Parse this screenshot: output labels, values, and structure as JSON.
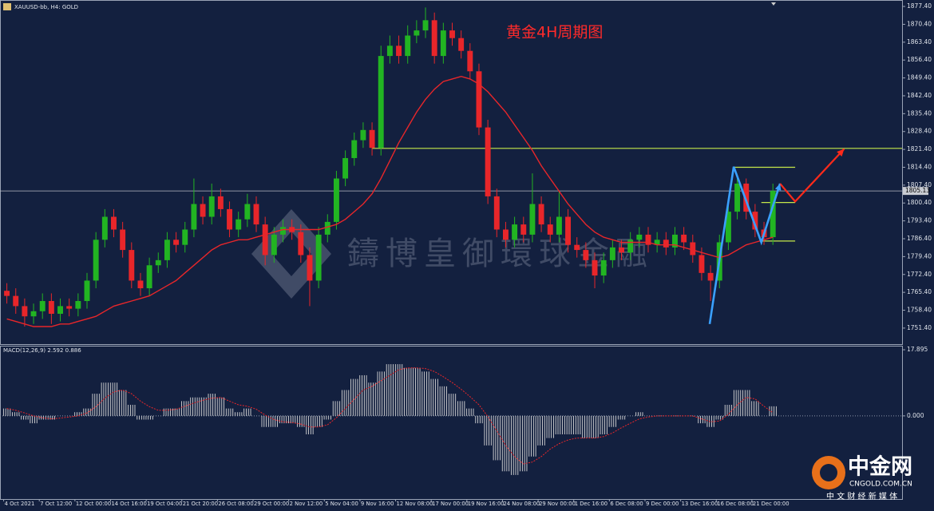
{
  "chart_data": [
    {
      "type": "candlestick",
      "title": "黄金4H周期图",
      "symbol_label": "XAUUSD-bb, H4: GOLD",
      "watermark": "鑄博皇御環球金融",
      "up_color": "#22b422",
      "down_color": "#e8262a",
      "open": [
        1766,
        1764,
        1760,
        1756,
        1758,
        1762,
        1757,
        1760,
        1759,
        1762,
        1770,
        1786,
        1795,
        1790,
        1782,
        1770,
        1767,
        1776,
        1778,
        1786,
        1784,
        1790,
        1800,
        1795,
        1803,
        1798,
        1790,
        1794,
        1800,
        1792,
        1780,
        1788,
        1791,
        1789,
        1780,
        1770,
        1788,
        1793,
        1810,
        1818,
        1825,
        1829,
        1822,
        1858,
        1862,
        1858,
        1866,
        1868,
        1872,
        1858,
        1868,
        1865,
        1860,
        1852,
        1830,
        1803,
        1790,
        1786,
        1792,
        1788,
        1800,
        1792,
        1788,
        1795,
        1784,
        1782,
        1778,
        1772,
        1778,
        1783,
        1781,
        1786,
        1788,
        1784,
        1786,
        1783,
        1788,
        1785,
        1780,
        1773,
        1770,
        1785,
        1797,
        1808,
        1797,
        1790,
        1787
      ],
      "high": [
        1769,
        1767,
        1763,
        1761,
        1765,
        1765,
        1763,
        1763,
        1765,
        1773,
        1789,
        1798,
        1798,
        1793,
        1785,
        1773,
        1779,
        1781,
        1789,
        1789,
        1793,
        1810,
        1803,
        1808,
        1806,
        1801,
        1797,
        1804,
        1803,
        1795,
        1791,
        1794,
        1794,
        1792,
        1783,
        1791,
        1796,
        1813,
        1821,
        1828,
        1832,
        1832,
        1862,
        1866,
        1866,
        1870,
        1872,
        1877,
        1875,
        1871,
        1871,
        1868,
        1863,
        1855,
        1833,
        1806,
        1793,
        1795,
        1795,
        1812,
        1803,
        1795,
        1805,
        1798,
        1787,
        1785,
        1781,
        1781,
        1786,
        1786,
        1789,
        1791,
        1791,
        1789,
        1789,
        1791,
        1791,
        1788,
        1783,
        1776,
        1788,
        1800,
        1811,
        1810,
        1800,
        1793,
        1808
      ],
      "low": [
        1761,
        1757,
        1752,
        1753,
        1755,
        1753,
        1754,
        1756,
        1756,
        1759,
        1767,
        1783,
        1787,
        1779,
        1767,
        1764,
        1764,
        1773,
        1775,
        1781,
        1781,
        1787,
        1792,
        1792,
        1795,
        1787,
        1787,
        1791,
        1789,
        1776,
        1777,
        1785,
        1786,
        1777,
        1760,
        1767,
        1785,
        1790,
        1807,
        1815,
        1822,
        1819,
        1819,
        1855,
        1855,
        1855,
        1863,
        1865,
        1855,
        1855,
        1862,
        1857,
        1849,
        1827,
        1800,
        1787,
        1783,
        1783,
        1785,
        1785,
        1789,
        1785,
        1785,
        1781,
        1779,
        1775,
        1767,
        1769,
        1775,
        1778,
        1778,
        1783,
        1781,
        1781,
        1780,
        1780,
        1782,
        1777,
        1770,
        1762,
        1767,
        1782,
        1794,
        1794,
        1787,
        1784,
        1784
      ],
      "close": [
        1764,
        1760,
        1756,
        1758,
        1762,
        1757,
        1760,
        1759,
        1762,
        1770,
        1786,
        1795,
        1790,
        1782,
        1770,
        1767,
        1776,
        1778,
        1786,
        1784,
        1790,
        1800,
        1795,
        1803,
        1798,
        1790,
        1794,
        1800,
        1792,
        1780,
        1788,
        1791,
        1789,
        1780,
        1770,
        1788,
        1793,
        1810,
        1818,
        1825,
        1829,
        1822,
        1858,
        1862,
        1858,
        1866,
        1868,
        1872,
        1858,
        1868,
        1865,
        1860,
        1852,
        1830,
        1803,
        1790,
        1786,
        1792,
        1788,
        1800,
        1792,
        1788,
        1795,
        1784,
        1782,
        1778,
        1772,
        1778,
        1783,
        1781,
        1786,
        1788,
        1784,
        1786,
        1783,
        1788,
        1785,
        1780,
        1773,
        1770,
        1785,
        1797,
        1808,
        1797,
        1790,
        1787,
        1805.13
      ],
      "ma": {
        "color": "#e8262a",
        "values": [
          1755,
          1754,
          1753,
          1752,
          1752,
          1752,
          1753,
          1753,
          1754,
          1755,
          1756,
          1758,
          1760,
          1761,
          1762,
          1763,
          1764,
          1766,
          1768,
          1770,
          1773,
          1776,
          1779,
          1782,
          1784,
          1785,
          1786,
          1786,
          1787,
          1788,
          1789,
          1790,
          1790,
          1790,
          1790,
          1790,
          1791,
          1792,
          1794,
          1797,
          1800,
          1804,
          1810,
          1817,
          1824,
          1830,
          1836,
          1841,
          1845,
          1848,
          1849,
          1850,
          1849,
          1847,
          1844,
          1840,
          1836,
          1831,
          1826,
          1821,
          1815,
          1810,
          1805,
          1800,
          1796,
          1792,
          1789,
          1787,
          1786,
          1785,
          1785,
          1785,
          1785,
          1784,
          1784,
          1784,
          1783,
          1782,
          1781,
          1780,
          1779,
          1780,
          1782,
          1784,
          1785,
          1786,
          1787
        ]
      },
      "levels": [
        {
          "value": 1821.8,
          "from": 41
        },
        {
          "value": 1814.4,
          "from": 81.6
        },
        {
          "value": 1800.6,
          "from": 84.7
        },
        {
          "value": 1785.5,
          "from": 84.7
        }
      ],
      "level_color": "#c6e84a",
      "level_to": 88.5,
      "current_price": 1805.13,
      "zigzag": {
        "color": "#3aa0ff",
        "x": [
          78.9,
          81.6,
          84.7,
          86.8
        ],
        "y": [
          1753,
          1814.6,
          1785,
          1808
        ]
      },
      "arrow": {
        "color": "#ff2a1a",
        "x": [
          86.8,
          88.5,
          94
        ],
        "y": [
          1808,
          1801,
          1821.6
        ]
      },
      "xlim": [
        0,
        101
      ],
      "ylim": [
        1744.8,
        1879.3
      ],
      "yticks": [
        {
          "value": 1877.4,
          "label": "1877.40"
        },
        {
          "value": 1870.4,
          "label": "1870.40"
        },
        {
          "value": 1863.4,
          "label": "1863.40"
        },
        {
          "value": 1856.4,
          "label": "1856.40"
        },
        {
          "value": 1849.4,
          "label": "1849.40"
        },
        {
          "value": 1842.4,
          "label": "1842.40"
        },
        {
          "value": 1835.4,
          "label": "1835.40"
        },
        {
          "value": 1828.4,
          "label": "1828.40"
        },
        {
          "value": 1821.4,
          "label": "1821.40"
        },
        {
          "value": 1814.4,
          "label": "1814.40"
        },
        {
          "value": 1807.4,
          "label": "1807.40"
        },
        {
          "value": 1800.4,
          "label": "1800.40"
        },
        {
          "value": 1793.4,
          "label": "1793.40"
        },
        {
          "value": 1786.4,
          "label": "1786.40"
        },
        {
          "value": 1779.4,
          "label": "1779.40"
        },
        {
          "value": 1772.4,
          "label": "1772.40"
        },
        {
          "value": 1765.4,
          "label": "1765.40"
        },
        {
          "value": 1758.4,
          "label": "1758.40"
        },
        {
          "value": 1751.4,
          "label": "1751.40"
        }
      ]
    },
    {
      "type": "macd",
      "label": "MACD(12,26,9) 2.592 0.886",
      "bar_color": "#d8d8d8",
      "values": [
        2,
        1,
        -1,
        -2,
        -1,
        -1,
        0,
        0,
        1,
        2,
        6,
        9,
        9,
        7,
        3,
        -1,
        -1,
        0,
        2,
        2,
        4,
        5,
        5,
        6,
        5,
        2,
        1,
        2,
        0,
        -3,
        -3,
        -2,
        -2,
        -3,
        -5,
        -3,
        -1,
        4,
        7,
        10,
        11,
        9,
        12,
        14,
        14,
        13,
        13,
        12,
        10,
        8,
        6,
        4,
        2,
        -2,
        -8,
        -12,
        -15,
        -16,
        -15,
        -11,
        -8,
        -6,
        -5,
        -5,
        -5,
        -6,
        -6,
        -5,
        -3,
        -1,
        0,
        1,
        0,
        0,
        0,
        0,
        0,
        0,
        -2,
        -3,
        -1,
        3,
        7,
        7,
        4,
        0,
        2.592
      ],
      "signal": {
        "color": "#e8262a",
        "values": [
          2,
          1.5,
          0.8,
          0,
          -0.5,
          -0.8,
          -0.6,
          -0.3,
          0,
          0.8,
          2.5,
          4.8,
          6.5,
          7,
          6,
          4,
          2.5,
          1.5,
          1.5,
          1.8,
          2.6,
          3.5,
          4.2,
          4.8,
          5,
          4,
          3,
          2.6,
          1.8,
          0.2,
          -1,
          -1.6,
          -1.8,
          -2.2,
          -3,
          -3,
          -2.4,
          -0.5,
          2,
          4.5,
          7,
          8,
          9.5,
          11,
          12.5,
          13,
          13,
          12.8,
          12,
          10.6,
          9,
          7.2,
          5.2,
          3,
          -0.2,
          -4,
          -8,
          -11,
          -13,
          -12.5,
          -11,
          -9,
          -7.5,
          -6.5,
          -6,
          -6,
          -6,
          -5.6,
          -4.6,
          -3.2,
          -2,
          -0.8,
          -0.3,
          0,
          0,
          0,
          0,
          0,
          -0.8,
          -1.6,
          -1.4,
          0.4,
          3,
          5,
          4.6,
          2.6,
          0.886
        ]
      },
      "xlim": [
        0,
        101
      ],
      "ylim": [
        -22.5,
        18.77
      ],
      "yticks": [
        17.895,
        {
          "value": 0,
          "label": "0.000"
        }
      ],
      "xticks": [
        {
          "value": 0,
          "label": "4 Oct 2021"
        },
        {
          "value": 4,
          "label": "7 Oct 12:00"
        },
        {
          "value": 8,
          "label": "12 Oct 00:00"
        },
        {
          "value": 12,
          "label": "14 Oct 16:00"
        },
        {
          "value": 16,
          "label": "19 Oct 04:00"
        },
        {
          "value": 20,
          "label": "21 Oct 20:00"
        },
        {
          "value": 24,
          "label": "26 Oct 08:00"
        },
        {
          "value": 28,
          "label": "29 Oct 00:00"
        },
        {
          "value": 32,
          "label": "2 Nov 12:00"
        },
        {
          "value": 36,
          "label": "5 Nov 04:00"
        },
        {
          "value": 40,
          "label": "9 Nov 16:00"
        },
        {
          "value": 44,
          "label": "12 Nov 08:00"
        },
        {
          "value": 48,
          "label": "17 Nov 00:00"
        },
        {
          "value": 52,
          "label": "19 Nov 16:00"
        },
        {
          "value": 56,
          "label": "24 Nov 08:00"
        },
        {
          "value": 60,
          "label": "29 Nov 00:00"
        },
        {
          "value": 64,
          "label": "1 Dec 16:00"
        },
        {
          "value": 68,
          "label": "6 Dec 08:00"
        },
        {
          "value": 72,
          "label": "9 Dec 00:00"
        },
        {
          "value": 76,
          "label": "13 Dec 16:00"
        },
        {
          "value": 80,
          "label": "16 Dec 08:00"
        },
        {
          "value": 84,
          "label": "21 Dec 00:00"
        }
      ]
    }
  ],
  "logo": {
    "name": "中金网",
    "domain": "CNGOLD.COM.CN",
    "slogan": "中 文 财 经 新 媒 体"
  }
}
